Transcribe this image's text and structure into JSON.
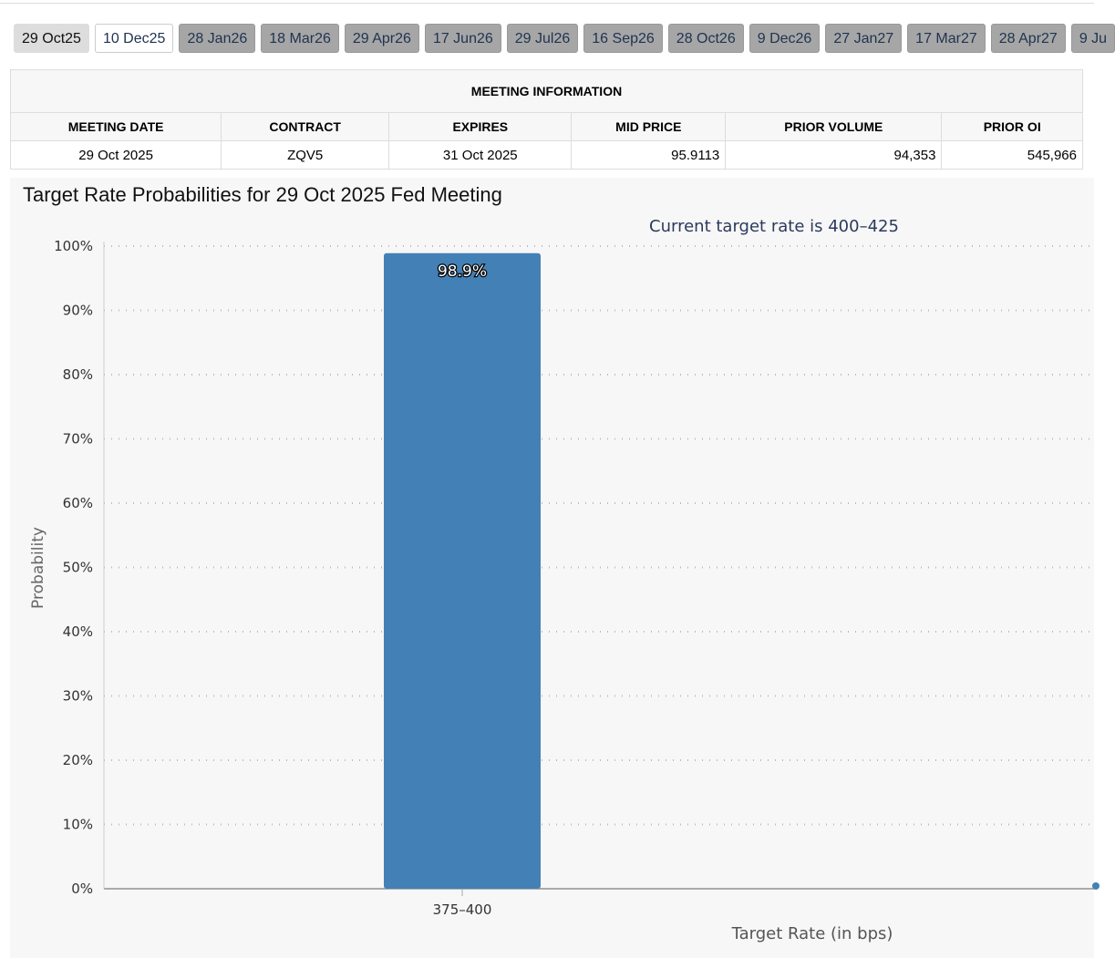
{
  "tabs": [
    "29 Oct25",
    "10 Dec25",
    "28 Jan26",
    "18 Mar26",
    "29 Apr26",
    "17 Jun26",
    "29 Jul26",
    "16 Sep26",
    "28 Oct26",
    "9 Dec26",
    "27 Jan27",
    "17 Mar27",
    "28 Apr27",
    "9 Ju"
  ],
  "table": {
    "caption": "MEETING INFORMATION",
    "headers": [
      "MEETING DATE",
      "CONTRACT",
      "EXPIRES",
      "MID PRICE",
      "PRIOR VOLUME",
      "PRIOR OI"
    ],
    "row": [
      "29 Oct 2025",
      "ZQV5",
      "31 Oct 2025",
      "95.9113",
      "94,353",
      "545,966"
    ]
  },
  "chart_data": {
    "type": "bar",
    "title": "Target Rate Probabilities for 29 Oct 2025 Fed Meeting",
    "subtitle": "Current target rate is 400–425",
    "xlabel": "Target Rate (in bps)",
    "ylabel": "Probability",
    "categories": [
      "375-400"
    ],
    "tick_labels": [
      "375–400"
    ],
    "values": [
      98.9
    ],
    "data_labels": [
      "98.9%"
    ],
    "ylim": [
      0,
      100
    ],
    "yticks": [
      "0%",
      "10%",
      "20%",
      "30%",
      "40%",
      "50%",
      "60%",
      "70%",
      "80%",
      "90%",
      "100%"
    ],
    "grid": true,
    "bar_color": "#4380b5"
  }
}
